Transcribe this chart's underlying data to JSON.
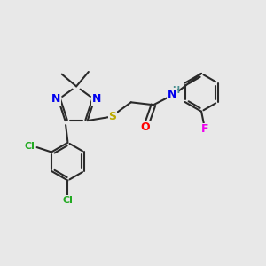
{
  "background_color": "#e8e8e8",
  "bond_color": "#2a2a2a",
  "atom_colors": {
    "N": "#0000ee",
    "S": "#bbaa00",
    "O": "#ff0000",
    "Cl": "#22aa22",
    "F": "#ee00ee",
    "H": "#4a9090",
    "C": "#2a2a2a"
  },
  "figsize": [
    3.0,
    3.0
  ],
  "dpi": 100
}
